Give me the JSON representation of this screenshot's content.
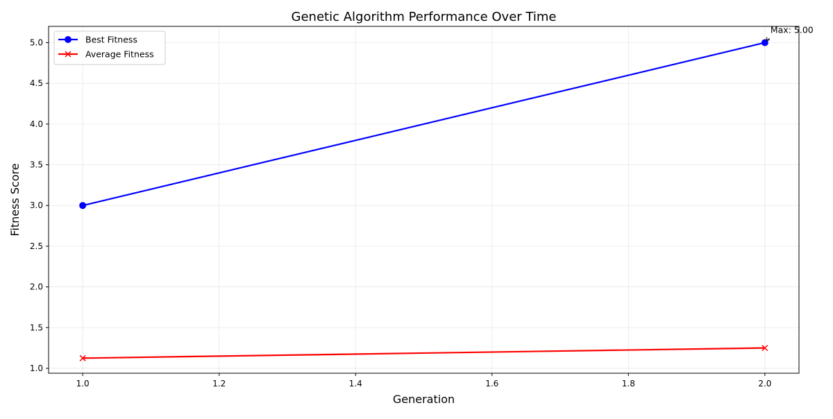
{
  "chart_data": {
    "type": "line",
    "title": "Genetic Algorithm Performance Over Time",
    "xlabel": "Generation",
    "ylabel": "Fitness Score",
    "xlim": [
      0.95,
      2.05
    ],
    "ylim": [
      0.94,
      5.2
    ],
    "xticks": [
      1.0,
      1.2,
      1.4,
      1.6,
      1.8,
      2.0
    ],
    "xtick_labels": [
      "1.0",
      "1.2",
      "1.4",
      "1.6",
      "1.8",
      "2.0"
    ],
    "yticks": [
      1.0,
      1.5,
      2.0,
      2.5,
      3.0,
      3.5,
      4.0,
      4.5,
      5.0
    ],
    "ytick_labels": [
      "1.0",
      "1.5",
      "2.0",
      "2.5",
      "3.0",
      "3.5",
      "4.0",
      "4.5",
      "5.0"
    ],
    "grid": true,
    "legend_position": "top-left",
    "series": [
      {
        "name": "Best Fitness",
        "x": [
          1,
          2
        ],
        "y": [
          3.0,
          5.0
        ],
        "color": "#0000ff",
        "marker": "circle"
      },
      {
        "name": "Average Fitness",
        "x": [
          1,
          2
        ],
        "y": [
          1.125,
          1.25
        ],
        "color": "#ff0000",
        "marker": "x"
      }
    ],
    "annotations": [
      {
        "text": "Max: 5.00",
        "x": 2,
        "y": 5.0
      }
    ]
  }
}
